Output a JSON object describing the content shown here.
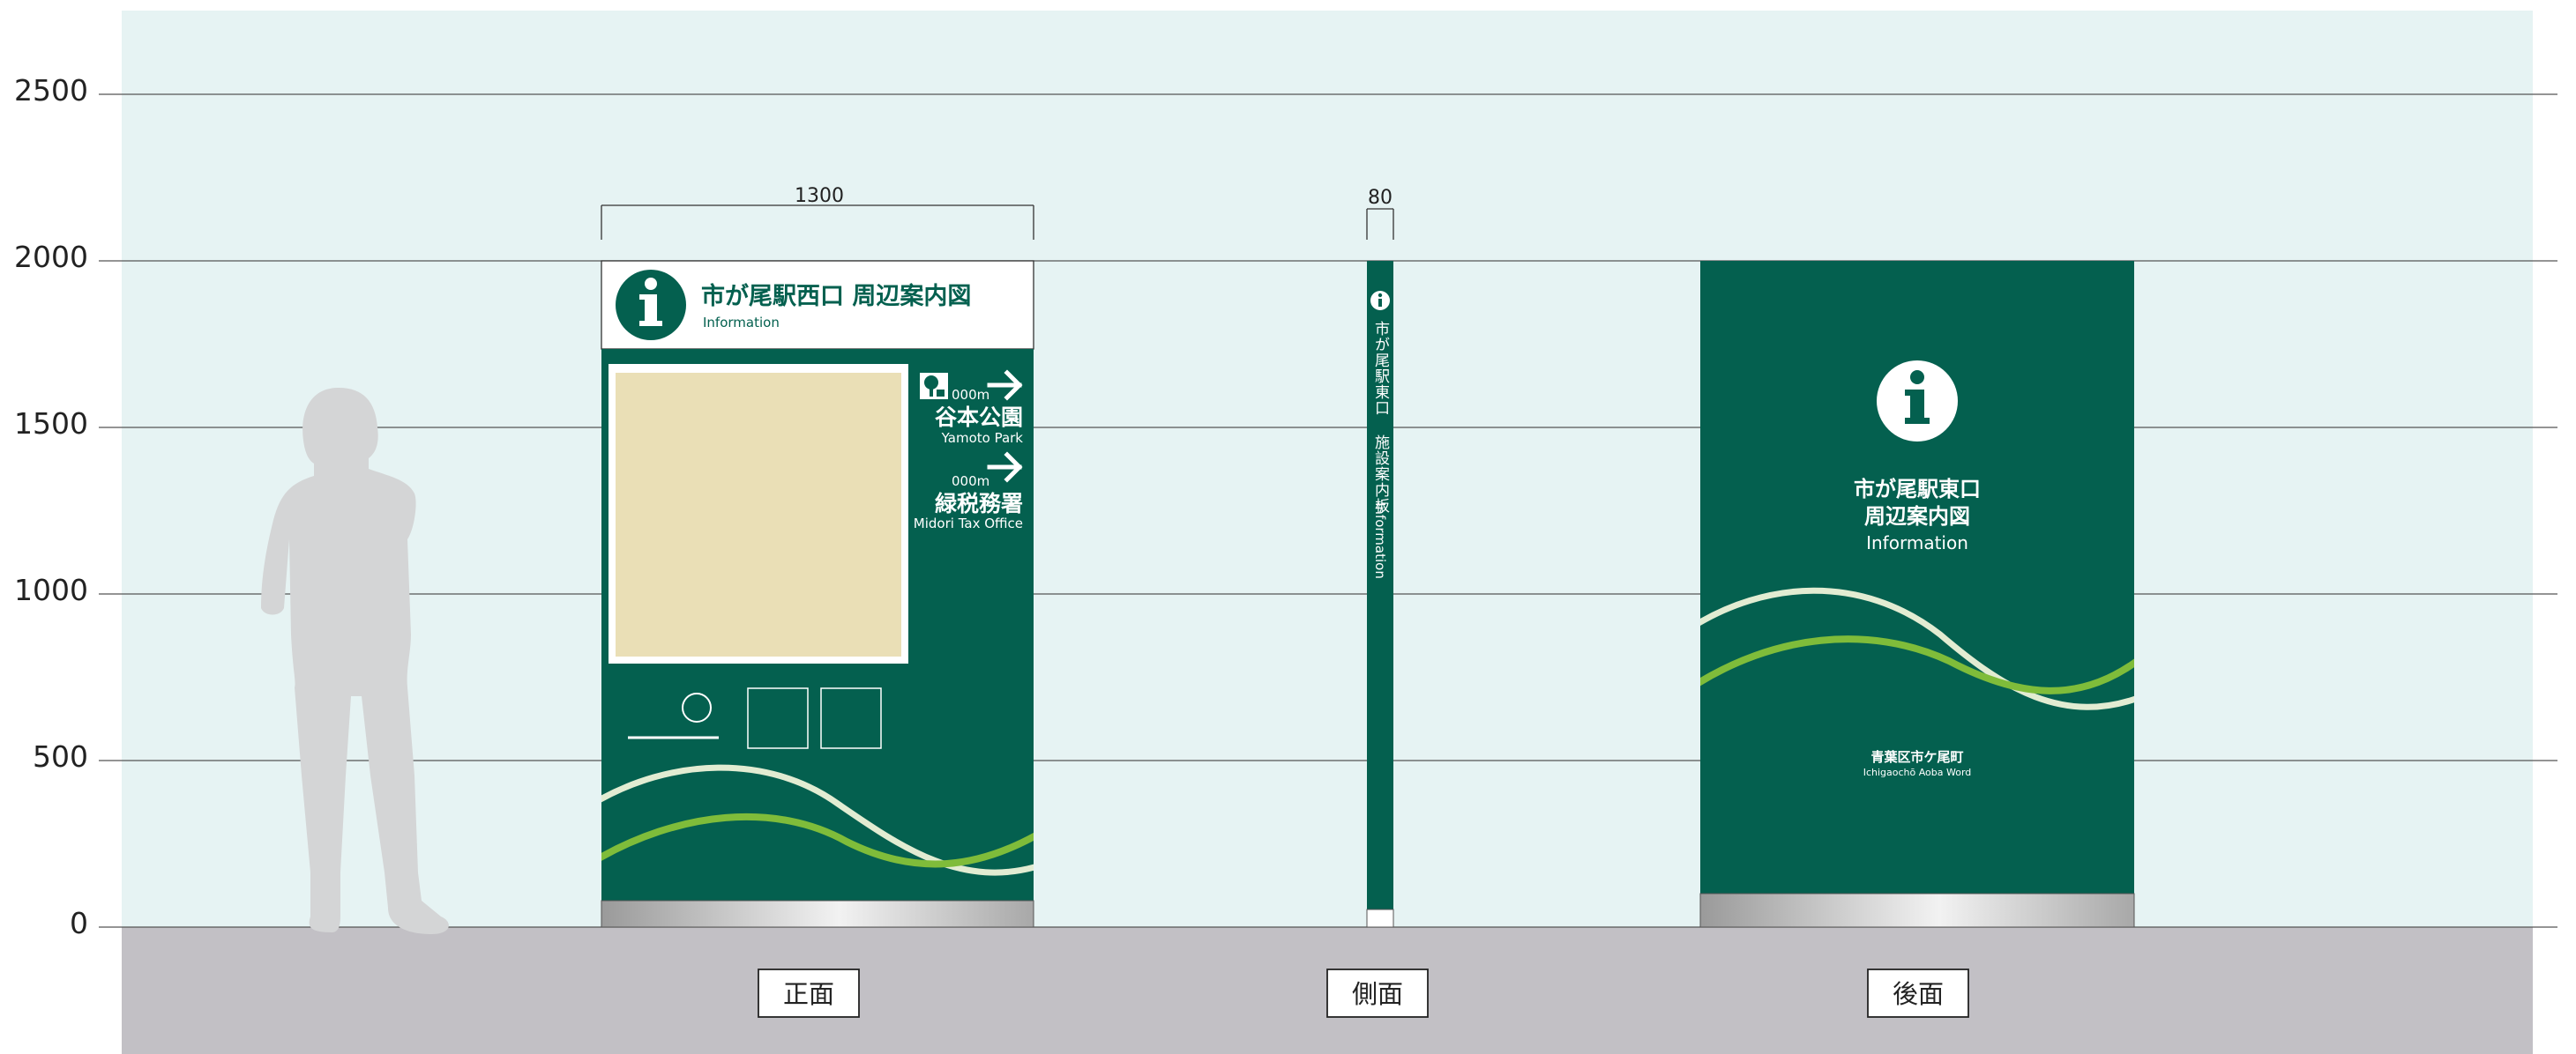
{
  "axis": {
    "ticks": [
      "2500",
      "2000",
      "1500",
      "1000",
      "500",
      "0"
    ]
  },
  "dimensions": {
    "front_width": "1300",
    "side_width": "80"
  },
  "front": {
    "title": "市が尾駅西口 周辺案内図",
    "subtitle": "Information",
    "directions": [
      {
        "distance": "000m",
        "name": "谷本公園",
        "name_en": "Yamoto Park"
      },
      {
        "distance": "000m",
        "name": "緑税務署",
        "name_en": "Midori Tax Office"
      }
    ],
    "label": "正面"
  },
  "side": {
    "vertical_text": "市が尾駅東口 施設案内板",
    "vertical_text_en": "Information",
    "label": "側面"
  },
  "back": {
    "title_line1": "市が尾駅東口",
    "title_line2": "周辺案内図",
    "subtitle": "Information",
    "footer": "青葉区市ケ尾町",
    "footer_en": "Ichigaochō Aoba Word",
    "label": "後面"
  },
  "colors": {
    "sky": "#e6f3f3",
    "ground": "#c2c0c5",
    "sign_green": "#04604f",
    "map_beige": "#eadfb6",
    "wave_light": "#e2ecd2",
    "wave_green": "#7fbc3a",
    "silhouette": "#d4d5d6",
    "metal": "#c9c9c9"
  },
  "icons": {
    "info": "info-icon",
    "arrow": "arrow-right-icon",
    "park": "park-icon",
    "person": "person-silhouette"
  }
}
